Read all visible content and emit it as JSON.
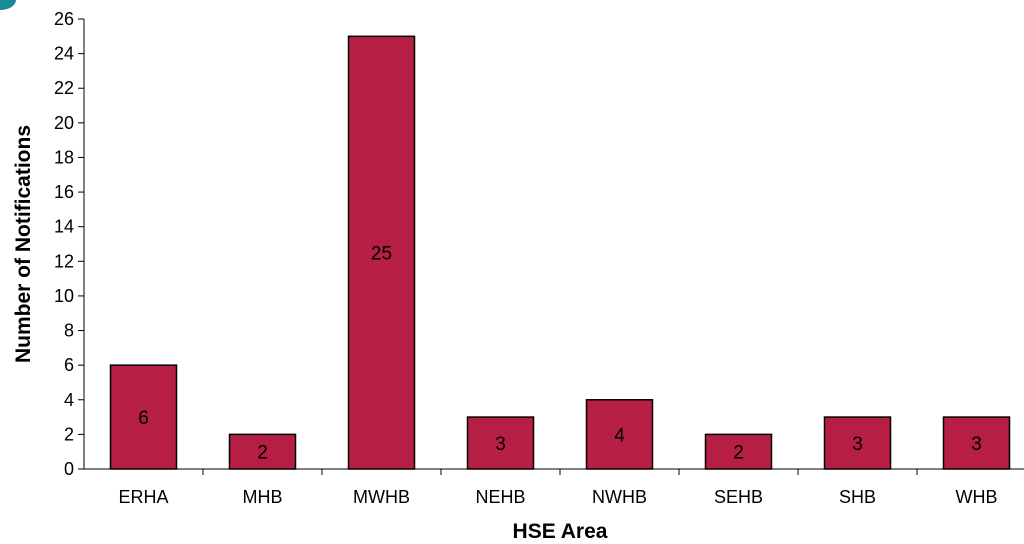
{
  "chart_data": {
    "type": "bar",
    "categories": [
      "ERHA",
      "MHB",
      "MWHB",
      "NEHB",
      "NWHB",
      "SEHB",
      "SHB",
      "WHB"
    ],
    "values": [
      6,
      2,
      25,
      3,
      4,
      2,
      3,
      3
    ],
    "data_labels": [
      "6",
      "2",
      "25",
      "3",
      "4",
      "2",
      "3",
      "3"
    ],
    "xlabel": "HSE Area",
    "ylabel": "Number of Notifications",
    "ylim": [
      0,
      26
    ],
    "yticks": [
      0,
      2,
      4,
      6,
      8,
      10,
      12,
      14,
      16,
      18,
      20,
      22,
      24,
      26
    ],
    "grid": false,
    "legend": "none",
    "bar_color": "#b71e43",
    "bar_edge_color": "#000000",
    "corner_mark_color": "#1d8a9c"
  }
}
